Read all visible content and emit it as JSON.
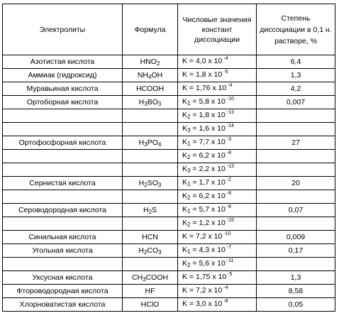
{
  "header": {
    "electrolyte": "Электролиты",
    "formula": "Формула",
    "constant": "Числовые значения констант диссоциации",
    "degree": "Степень диссоциации в 0,1 н. растворе, %"
  },
  "rows": [
    {
      "name": "Азотистая кислота",
      "formula": [
        "HNO",
        "2",
        ""
      ],
      "k": "K",
      "ksub": "",
      "mant": "4,0",
      "exp": "-4",
      "deg": "6,4"
    },
    {
      "name": "Аммиак (гидроксид)",
      "formula": [
        "NH",
        "4",
        "OH"
      ],
      "k": "K",
      "ksub": "",
      "mant": "1,8",
      "exp": "-5",
      "deg": "1,3"
    },
    {
      "name": "Муравьиная кислота",
      "formula": [
        "HCOOH",
        "",
        ""
      ],
      "k": "K",
      "ksub": "",
      "mant": "1,76",
      "exp": "-4",
      "deg": "4,2"
    },
    {
      "name": "Ортоборная кислота",
      "formula": [
        "H",
        "3",
        "BO",
        "3"
      ],
      "k": "K",
      "ksub": "1",
      "mant": "5,8",
      "exp": "-10",
      "deg": "0,007"
    },
    {
      "name": "",
      "formula": [],
      "k": "K",
      "ksub": "2",
      "mant": "1,8",
      "exp": "-13",
      "deg": ""
    },
    {
      "name": "",
      "formula": [],
      "k": "K",
      "ksub": "3",
      "mant": "1,6",
      "exp": "-14",
      "deg": ""
    },
    {
      "name": "Ортофосфорная кислота",
      "formula": [
        "H",
        "3",
        "PO",
        "4"
      ],
      "k": "K",
      "ksub": "1",
      "mant": "7,7",
      "exp": "-3",
      "deg": "27"
    },
    {
      "name": "",
      "formula": [],
      "k": "K",
      "ksub": "2",
      "mant": "6,2",
      "exp": "-8",
      "deg": ""
    },
    {
      "name": "",
      "formula": [],
      "k": "K",
      "ksub": "3",
      "mant": "2,2",
      "exp": "-13",
      "deg": ""
    },
    {
      "name": "Сернистая кислота",
      "formula": [
        "H",
        "2",
        "SO",
        "3"
      ],
      "k": "K",
      "ksub": "1",
      "mant": "1,7",
      "exp": "-2",
      "deg": "20"
    },
    {
      "name": "",
      "formula": [],
      "k": "K",
      "ksub": "2",
      "mant": "6,2",
      "exp": "-8",
      "deg": ""
    },
    {
      "name": "Сероводородная кислота",
      "formula": [
        "H",
        "2",
        "S",
        ""
      ],
      "k": "K",
      "ksub": "1",
      "mant": "5,7",
      "exp": "-8",
      "deg": "0,07"
    },
    {
      "name": "",
      "formula": [],
      "k": "K",
      "ksub": "2",
      "mant": "1,2",
      "exp": "-15",
      "deg": ""
    },
    {
      "name": "Синильная кислота",
      "formula": [
        "HCN",
        "",
        ""
      ],
      "k": "K",
      "ksub": "",
      "mant": "7,2",
      "exp": "-10",
      "deg": "0,009"
    },
    {
      "name": "Угольная кислота",
      "formula": [
        "H",
        "2",
        "CO",
        "3"
      ],
      "k": "K",
      "ksub": "1",
      "mant": "4,3",
      "exp": "-7",
      "deg": "0,17"
    },
    {
      "name": "",
      "formula": [],
      "k": "K",
      "ksub": "2",
      "mant": "5,6",
      "exp": "-11",
      "deg": ""
    },
    {
      "name": "Уксусная кислота",
      "formula": [
        "CH",
        "3",
        "COOH"
      ],
      "k": "K",
      "ksub": "",
      "mant": "1,75",
      "exp": "-5",
      "deg": "1,3"
    },
    {
      "name": "Фтороводородная кислота",
      "formula": [
        "HF",
        "",
        ""
      ],
      "k": "K",
      "ksub": "",
      "mant": "7,2",
      "exp": "-4",
      "deg": "8,58"
    },
    {
      "name": "Хлорноватистая кислота",
      "formula": [
        "HClO",
        "",
        ""
      ],
      "k": "K",
      "ksub": "",
      "mant": "3,0",
      "exp": "-8",
      "deg": "0,05"
    }
  ],
  "times_ten": "x 10"
}
